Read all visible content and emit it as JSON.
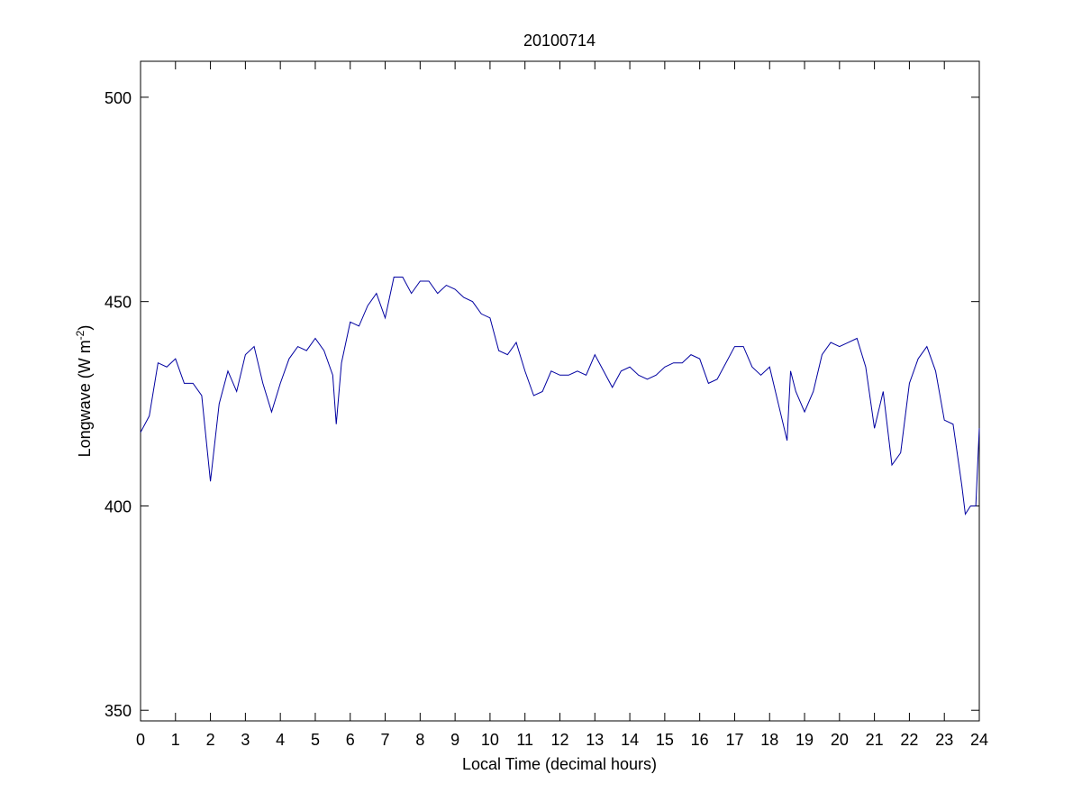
{
  "chart_data": {
    "type": "line",
    "title": "20100714",
    "xlabel": "Local Time (decimal hours)",
    "ylabel": {
      "text": "Longwave (W m",
      "superscript": "-2",
      "suffix": ")"
    },
    "x": [
      0,
      0.25,
      0.5,
      0.75,
      1,
      1.25,
      1.5,
      1.75,
      2,
      2.25,
      2.5,
      2.75,
      3,
      3.25,
      3.5,
      3.75,
      4,
      4.25,
      4.5,
      4.75,
      5,
      5.25,
      5.5,
      5.6,
      5.75,
      6,
      6.25,
      6.5,
      6.75,
      7,
      7.25,
      7.5,
      7.75,
      8,
      8.25,
      8.5,
      8.75,
      9,
      9.25,
      9.5,
      9.75,
      10,
      10.25,
      10.5,
      10.75,
      11,
      11.25,
      11.5,
      11.75,
      12,
      12.25,
      12.5,
      12.75,
      13,
      13.25,
      13.5,
      13.75,
      14,
      14.25,
      14.5,
      14.75,
      15,
      15.25,
      15.5,
      15.75,
      16,
      16.25,
      16.5,
      16.75,
      17,
      17.25,
      17.5,
      17.75,
      18,
      18.25,
      18.5,
      18.6,
      18.75,
      19,
      19.25,
      19.5,
      19.75,
      20,
      20.25,
      20.5,
      20.75,
      21,
      21.25,
      21.5,
      21.75,
      22,
      22.25,
      22.5,
      22.75,
      23,
      23.25,
      23.5,
      23.6,
      23.75,
      23.9,
      24
    ],
    "series": [
      {
        "name": "Longwave",
        "color": "#0000a0",
        "values": [
          418,
          422,
          435,
          434,
          436,
          430,
          430,
          427,
          406,
          425,
          433,
          428,
          437,
          439,
          430,
          423,
          430,
          436,
          439,
          438,
          441,
          438,
          432,
          420,
          435,
          445,
          444,
          449,
          452,
          446,
          456,
          456,
          452,
          455,
          455,
          452,
          454,
          453,
          451,
          450,
          447,
          446,
          438,
          437,
          440,
          433,
          427,
          428,
          433,
          432,
          432,
          433,
          432,
          437,
          433,
          429,
          433,
          434,
          432,
          431,
          432,
          434,
          435,
          435,
          437,
          436,
          430,
          431,
          435,
          439,
          439,
          434,
          432,
          434,
          425,
          416,
          433,
          428,
          423,
          428,
          437,
          440,
          439,
          440,
          441,
          434,
          419,
          428,
          410,
          413,
          430,
          436,
          439,
          433,
          421,
          420,
          405,
          398,
          400,
          400,
          419
        ]
      }
    ],
    "xlim": [
      0,
      24
    ],
    "ylim": [
      347.4,
      508.8
    ],
    "xticks": [
      0,
      1,
      2,
      3,
      4,
      5,
      6,
      7,
      8,
      9,
      10,
      11,
      12,
      13,
      14,
      15,
      16,
      17,
      18,
      19,
      20,
      21,
      22,
      23,
      24
    ],
    "yticks": [
      350,
      400,
      450,
      500
    ],
    "grid": false
  }
}
